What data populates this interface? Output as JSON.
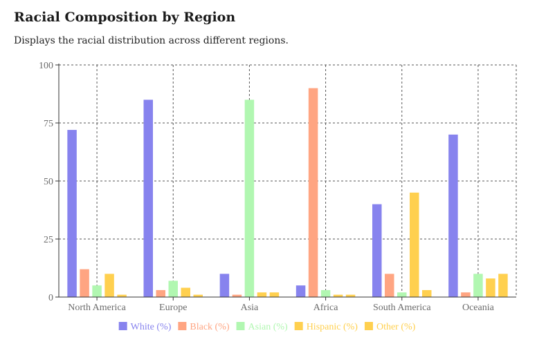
{
  "title": "Racial Composition by Region",
  "subtitle": "Displays the racial distribution across different regions.",
  "chart_data": {
    "type": "bar",
    "categories": [
      "North America",
      "Europe",
      "Asia",
      "Africa",
      "South America",
      "Oceania"
    ],
    "series": [
      {
        "name": "White (%)",
        "color": "#8783ee",
        "values": [
          72,
          85,
          10,
          5,
          40,
          70
        ]
      },
      {
        "name": "Black (%)",
        "color": "#ffa582",
        "values": [
          12,
          3,
          1,
          90,
          10,
          2
        ]
      },
      {
        "name": "Asian (%)",
        "color": "#b1f7b1",
        "values": [
          5,
          7,
          85,
          3,
          2,
          10
        ]
      },
      {
        "name": "Hispanic (%)",
        "color": "#ffd04f",
        "values": [
          10,
          4,
          2,
          1,
          45,
          8
        ]
      },
      {
        "name": "Other (%)",
        "color": "#ffd04f",
        "values": [
          1,
          1,
          2,
          1,
          3,
          10
        ]
      }
    ],
    "ylim": [
      0,
      100
    ],
    "yticks": [
      0,
      25,
      50,
      75,
      100
    ],
    "grid": true,
    "legend": "bottom"
  }
}
